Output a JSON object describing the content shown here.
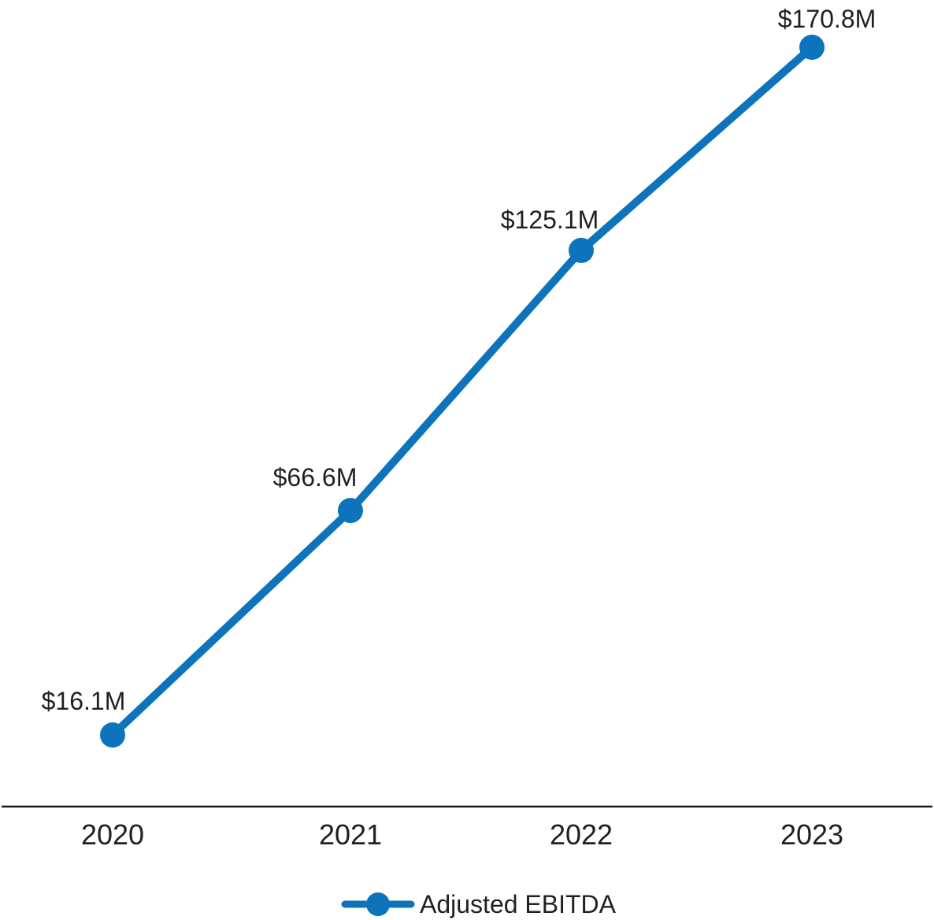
{
  "chart_data": {
    "type": "line",
    "categories": [
      "2020",
      "2021",
      "2022",
      "2023"
    ],
    "series": [
      {
        "name": "Adjusted EBITDA",
        "values": [
          16.1,
          66.6,
          125.1,
          170.8
        ],
        "point_labels": [
          "$16.1M",
          "$66.6M",
          "$125.1M",
          "$170.8M"
        ]
      }
    ],
    "title": "",
    "xlabel": "",
    "ylabel": "",
    "ylim": [
      0,
      170.8
    ],
    "grid": false,
    "legend_position": "bottom",
    "colors": {
      "line": "#0D73BB",
      "text": "#231F20",
      "axis": "#1A1A1A",
      "background": "#FFFFFF"
    }
  },
  "legend": {
    "label": "Adjusted EBITDA"
  }
}
